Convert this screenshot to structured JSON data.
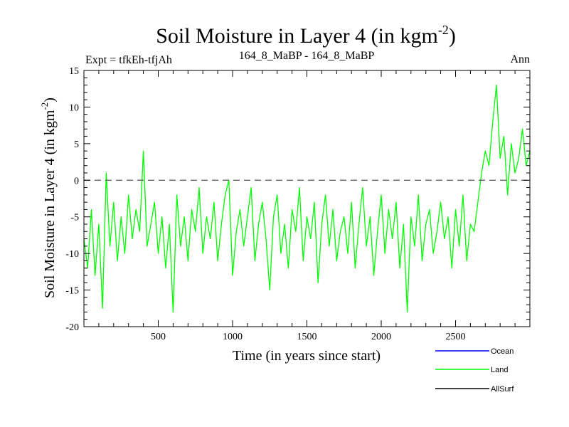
{
  "chart_data": {
    "type": "line",
    "title": "Soil Moisture in Layer 4 (in kgm",
    "title_sup": "-2",
    "title_close": ")",
    "subtitle_left": "Expt = tfkEh-tfjAh",
    "subtitle_center": "164_8_MaBP - 164_8_MaBP",
    "subtitle_right": "Ann",
    "xlabel": "Time (in years since start)",
    "ylabel": "Soil Moisture in Layer 4 (in kgm",
    "ylabel_sup": "-2",
    "ylabel_close": ")",
    "xlim": [
      0,
      3000
    ],
    "ylim": [
      -20,
      15
    ],
    "xticks": [
      500,
      1000,
      1500,
      2000,
      2500
    ],
    "xtick_labels": [
      "500",
      "1000",
      "1500",
      "2000",
      "2500"
    ],
    "yticks": [
      -20,
      -15,
      -10,
      -5,
      0,
      5,
      10,
      15
    ],
    "ytick_labels": [
      "-20",
      "-15",
      "-10",
      "-5",
      "0",
      "5",
      "10",
      "15"
    ],
    "reference_line": 0,
    "grid": false,
    "legend_position": "bottom-right",
    "series": [
      {
        "name": "Ocean",
        "color": "#0000ff",
        "x": [],
        "values": []
      },
      {
        "name": "Land",
        "color": "#00ff00",
        "x": [
          0,
          25,
          50,
          75,
          100,
          125,
          150,
          175,
          200,
          225,
          250,
          275,
          300,
          325,
          350,
          375,
          400,
          425,
          450,
          475,
          500,
          525,
          550,
          575,
          600,
          625,
          650,
          675,
          700,
          725,
          750,
          775,
          800,
          825,
          850,
          875,
          900,
          925,
          950,
          975,
          1000,
          1025,
          1050,
          1075,
          1100,
          1125,
          1150,
          1175,
          1200,
          1225,
          1250,
          1275,
          1300,
          1325,
          1350,
          1375,
          1400,
          1425,
          1450,
          1475,
          1500,
          1525,
          1550,
          1575,
          1600,
          1625,
          1650,
          1675,
          1700,
          1725,
          1750,
          1775,
          1800,
          1825,
          1850,
          1875,
          1900,
          1925,
          1950,
          1975,
          2000,
          2025,
          2050,
          2075,
          2100,
          2125,
          2150,
          2175,
          2200,
          2225,
          2250,
          2275,
          2300,
          2325,
          2350,
          2375,
          2400,
          2425,
          2450,
          2475,
          2500,
          2525,
          2550,
          2575,
          2600,
          2625,
          2650,
          2675,
          2700,
          2725,
          2750,
          2775,
          2800,
          2825,
          2850,
          2875,
          2900,
          2925,
          2950,
          2975,
          3000
        ],
        "values": [
          -8,
          -12,
          -4,
          -13,
          -6,
          -17.5,
          1,
          -9,
          -3,
          -11,
          -5,
          -10,
          -2,
          -8,
          -4,
          -7,
          4,
          -9,
          -6,
          -3,
          -10,
          -5,
          -12,
          -6,
          -18,
          -2,
          -9,
          -5,
          -11,
          -4,
          -7,
          -1,
          -10,
          -5,
          -8,
          -3,
          -11,
          -6,
          -2,
          0,
          -13,
          -7,
          -4,
          -9,
          -5,
          -1,
          -11,
          -6,
          -3,
          -8,
          -15,
          -5,
          -2,
          -10,
          -6,
          -12,
          -4,
          -7,
          -1,
          -11,
          -5,
          -8,
          -3,
          -14,
          -6,
          -2,
          -9,
          -4,
          -11,
          -7,
          -5,
          -10,
          -3,
          -12,
          -6,
          -1,
          -9,
          -5,
          -13,
          -7,
          -2,
          -10,
          -4,
          -8,
          -3,
          -12,
          -6,
          -18,
          -5,
          -9,
          -2,
          -11,
          -6,
          -4,
          -10,
          -7,
          -3,
          -8,
          -5,
          -12,
          -4,
          -9,
          -2,
          -11,
          -6,
          -7,
          -3,
          1,
          4,
          2,
          8,
          13,
          3,
          6,
          -2,
          5,
          1,
          3,
          7,
          2,
          4
        ],
        "values_note": ""
      },
      {
        "name": "AllSurf",
        "color": "#000000",
        "x": [],
        "values": []
      }
    ]
  },
  "legend": {
    "items": [
      {
        "label": "Ocean",
        "color": "#0000ff"
      },
      {
        "label": "Land",
        "color": "#00ff00"
      },
      {
        "label": "AllSurf",
        "color": "#000000"
      }
    ]
  }
}
